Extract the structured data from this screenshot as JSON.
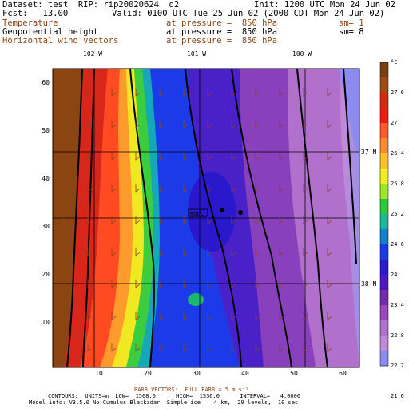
{
  "header": {
    "dataset": "Dataset: test  RIP: rip20020624  d2",
    "init": "Init: 1200 UTC Mon 24 Jun 02",
    "fcst": "Fcst:   13.00",
    "valid": "Valid: 0100 UTC Tue 25 Jun 02 (2000 CDT Mon 24 Jun 02)",
    "fields": [
      {
        "name": "Temperature",
        "pressure": "at pressure =  850 hPa",
        "sm": "sm= 1",
        "color": "#8b4513"
      },
      {
        "name": "Geopotential height",
        "pressure": "at pressure =  850 hPa",
        "sm": "sm= 8",
        "color": "#000000"
      },
      {
        "name": "Horizontal wind vectors",
        "pressure": "at pressure =  850 hPa",
        "sm": "",
        "color": "#8b4513"
      }
    ]
  },
  "map": {
    "lon_labels": [
      "102 W",
      "101 W",
      "100 W"
    ],
    "lat_labels": [
      "37 N",
      "38 N"
    ],
    "x_ticks": [
      "10",
      "20",
      "30",
      "40",
      "50",
      "60"
    ],
    "y_ticks": [
      "10",
      "20",
      "30",
      "40",
      "50",
      "60"
    ],
    "station_label": "KDDC"
  },
  "colorbar": {
    "unit": "°C",
    "labels": [
      "27.6",
      "27",
      "26.4",
      "25.8",
      "25.2",
      "24.6",
      "24",
      "23.4",
      "22.8",
      "22.2",
      "21.6"
    ],
    "colors": [
      "#7a4010",
      "#a14a14",
      "#d42a10",
      "#ee1e12",
      "#ff5a2c",
      "#ff8a2e",
      "#ffc22c",
      "#f0f020",
      "#9be82a",
      "#2cc840",
      "#18b898",
      "#1480d0",
      "#1c3ae8",
      "#2c1ad0",
      "#5018c0",
      "#7428b4",
      "#9a48c0",
      "#b070cc",
      "#c08ad8",
      "#8c8cf0"
    ]
  },
  "footer": {
    "barbs": "BARB VECTORS:  FULL BARB = 5 m s⁻¹",
    "contours": "CONTOURS:  UNITS=m  LOW=  1508.0      HIGH=  1536.0      INTERVAL=   4.0000",
    "model": "Model info: V3.5.0 No Cumulus Blackadar  Simple ice    4 km,  29 levels,  10 sec"
  }
}
